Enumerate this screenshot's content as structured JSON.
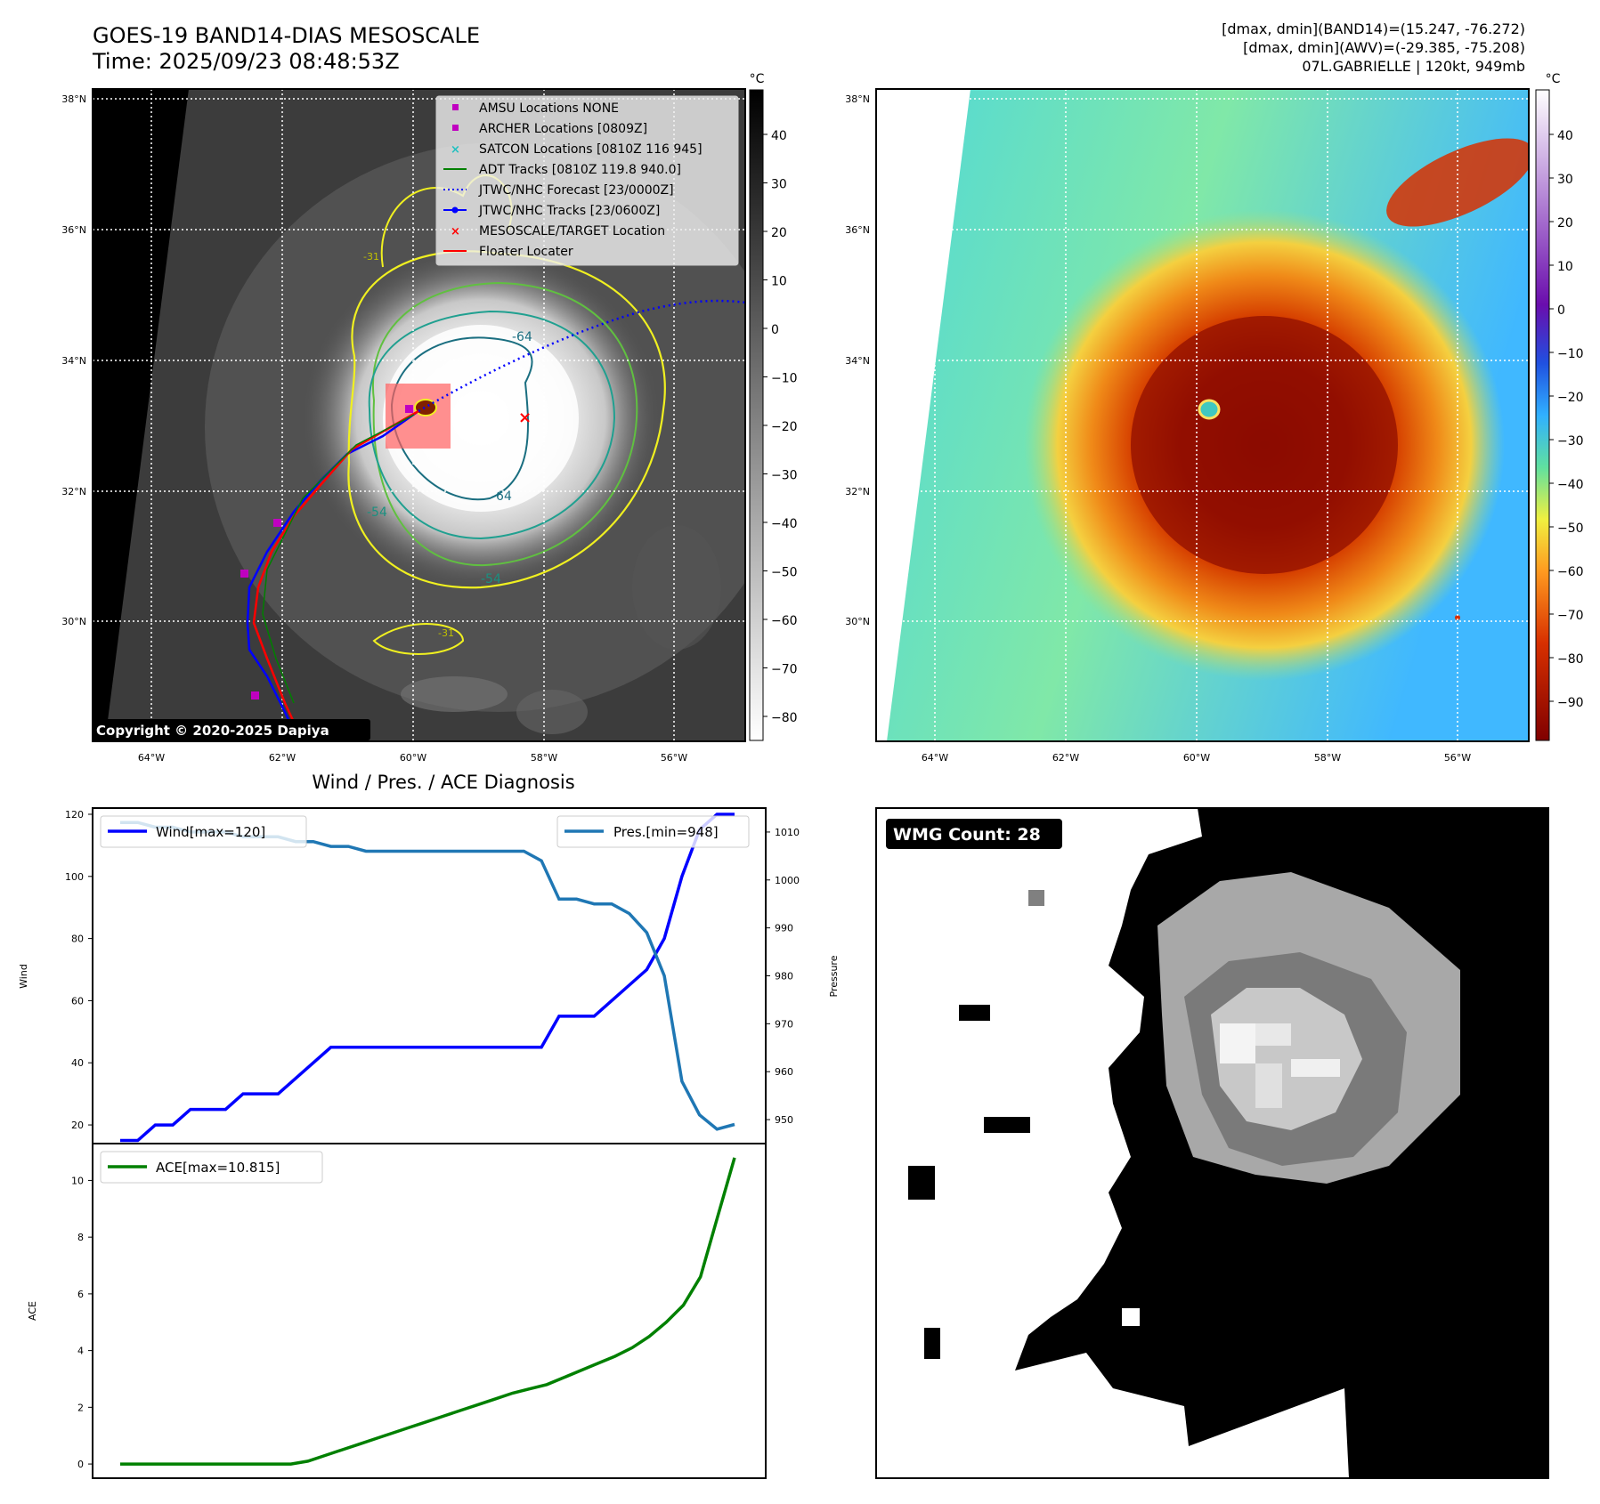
{
  "header": {
    "title_line1": "GOES-19 BAND14-DIAS MESOSCALE",
    "title_line2": "Time: 2025/09/23 08:48:53Z",
    "stats_line1": "[dmax, dmin](BAND14)=(15.247, -76.272)",
    "stats_line2": "[dmax, dmin](AWV)=(-29.385, -75.208)",
    "stats_line3": "07L.GABRIELLE | 120kt, 949mb"
  },
  "map": {
    "lat_labels": [
      "38°N",
      "36°N",
      "34°N",
      "32°N",
      "30°N"
    ],
    "lon_labels": [
      "64°W",
      "62°W",
      "60°W",
      "58°W",
      "56°W"
    ],
    "copyright": "Copyright © 2020-2025 Dapiya",
    "contour_labels": [
      "-31",
      "-54",
      "-64",
      "-64",
      "-54",
      "-31"
    ],
    "legend": [
      {
        "label": "AMSU Locations NONE",
        "color": "#c000c0",
        "marker": "square"
      },
      {
        "label": "ARCHER Locations [0809Z]",
        "color": "#c000c0",
        "marker": "square"
      },
      {
        "label": "SATCON Locations [0810Z 116 945]",
        "color": "#20c0c0",
        "marker": "x"
      },
      {
        "label": "ADT Tracks [0810Z 119.8 940.0]",
        "color": "#008000",
        "marker": "line"
      },
      {
        "label": "JTWC/NHC Forecast [23/0000Z]",
        "color": "#0000ff",
        "marker": "dotted"
      },
      {
        "label": "JTWC/NHC Tracks [23/0600Z]",
        "color": "#0000ff",
        "marker": "line-dot"
      },
      {
        "label": "MESOSCALE/TARGET Location",
        "color": "#ff0000",
        "marker": "x"
      },
      {
        "label": "Floater Locater",
        "color": "#ff0000",
        "marker": "line"
      }
    ]
  },
  "colorbar_left": {
    "unit": "°C",
    "ticks": [
      "40",
      "30",
      "20",
      "10",
      "0",
      "−10",
      "−20",
      "−30",
      "−40",
      "−50",
      "−60",
      "−70",
      "−80"
    ]
  },
  "colorbar_right": {
    "unit": "°C",
    "ticks": [
      "40",
      "30",
      "20",
      "10",
      "0",
      "−10",
      "−20",
      "−30",
      "−40",
      "−50",
      "−60",
      "−70",
      "−80",
      "−90"
    ]
  },
  "wmg": {
    "label": "WMG Count: 28"
  },
  "chart_data": [
    {
      "type": "line",
      "title": "Wind / Pres. / ACE Diagnosis",
      "ylabel": "Wind",
      "y2label": "Pressure",
      "ylim": [
        14,
        122
      ],
      "y2lim": [
        945,
        1015
      ],
      "yticks": [
        20,
        40,
        60,
        80,
        100,
        120
      ],
      "y2ticks": [
        950,
        960,
        970,
        980,
        990,
        1000,
        1010
      ],
      "series": [
        {
          "name": "Wind[max=120]",
          "color": "#0000ff",
          "axis": "left",
          "values": [
            15,
            15,
            20,
            20,
            25,
            25,
            25,
            30,
            30,
            30,
            35,
            40,
            45,
            45,
            45,
            45,
            45,
            45,
            45,
            45,
            45,
            45,
            45,
            45,
            45,
            55,
            55,
            55,
            60,
            65,
            70,
            80,
            100,
            115,
            120,
            120
          ]
        },
        {
          "name": "Pres.[min=948]",
          "color": "#1f77b4",
          "axis": "right",
          "values": [
            1012,
            1012,
            1011,
            1011,
            1010,
            1010,
            1010,
            1009,
            1009,
            1009,
            1008,
            1008,
            1007,
            1007,
            1006,
            1006,
            1006,
            1006,
            1006,
            1006,
            1006,
            1006,
            1006,
            1006,
            1004,
            996,
            996,
            995,
            995,
            993,
            989,
            980,
            958,
            951,
            948,
            949
          ]
        }
      ]
    },
    {
      "type": "line",
      "ylabel": "ACE",
      "ylim": [
        -0.5,
        11.3
      ],
      "yticks": [
        0,
        2,
        4,
        6,
        8,
        10
      ],
      "series": [
        {
          "name": "ACE[max=10.815]",
          "color": "#008000",
          "values": [
            0,
            0,
            0,
            0,
            0,
            0,
            0,
            0,
            0,
            0,
            0,
            0.1,
            0.3,
            0.5,
            0.7,
            0.9,
            1.1,
            1.3,
            1.5,
            1.7,
            1.9,
            2.1,
            2.3,
            2.5,
            2.65,
            2.8,
            3.05,
            3.3,
            3.55,
            3.8,
            4.1,
            4.5,
            5.0,
            5.6,
            6.6,
            8.7,
            10.8
          ]
        }
      ]
    }
  ]
}
